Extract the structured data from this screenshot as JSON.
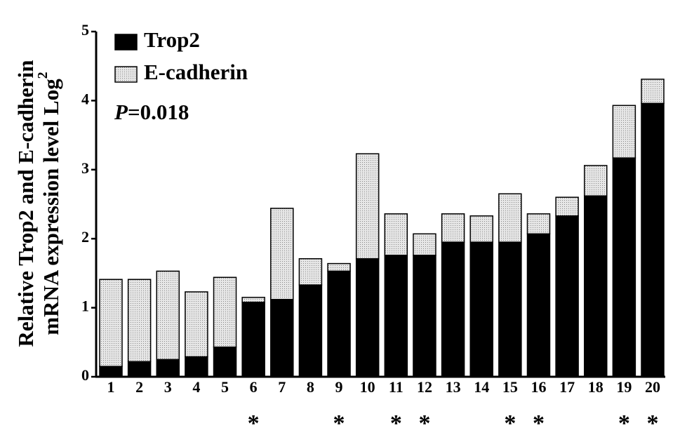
{
  "chart_data": {
    "type": "stacked_bar",
    "ylabel_lines": [
      "Relative Trop2 and E-cadherin",
      "mRNA expression level Log"
    ],
    "ylabel_superscript": "2",
    "annotation": {
      "italic": "P",
      "text": "=0.018"
    },
    "categories": [
      "1",
      "2",
      "3",
      "4",
      "5",
      "6",
      "7",
      "8",
      "9",
      "10",
      "11",
      "12",
      "13",
      "14",
      "15",
      "16",
      "17",
      "18",
      "19",
      "20"
    ],
    "markers": [
      null,
      null,
      null,
      null,
      null,
      "*",
      null,
      null,
      "*",
      null,
      "*",
      "*",
      null,
      null,
      "*",
      "*",
      null,
      null,
      "*",
      "*"
    ],
    "series": [
      {
        "name": "Trop2",
        "color": "#000000",
        "values": [
          0.15,
          0.22,
          0.25,
          0.29,
          0.43,
          1.08,
          1.12,
          1.33,
          1.53,
          1.71,
          1.76,
          1.76,
          1.95,
          1.95,
          1.95,
          2.07,
          2.33,
          2.62,
          3.17,
          3.96
        ]
      },
      {
        "name": "E-cadherin",
        "color": "#d9d9d9",
        "values": [
          1.26,
          1.19,
          1.28,
          0.94,
          1.01,
          0.07,
          1.32,
          0.38,
          0.11,
          1.52,
          0.6,
          0.31,
          0.41,
          0.38,
          0.7,
          0.29,
          0.27,
          0.44,
          0.76,
          0.35
        ]
      }
    ],
    "ylim": [
      0,
      5
    ],
    "yticks": [
      0,
      1,
      2,
      3,
      4,
      5
    ]
  }
}
